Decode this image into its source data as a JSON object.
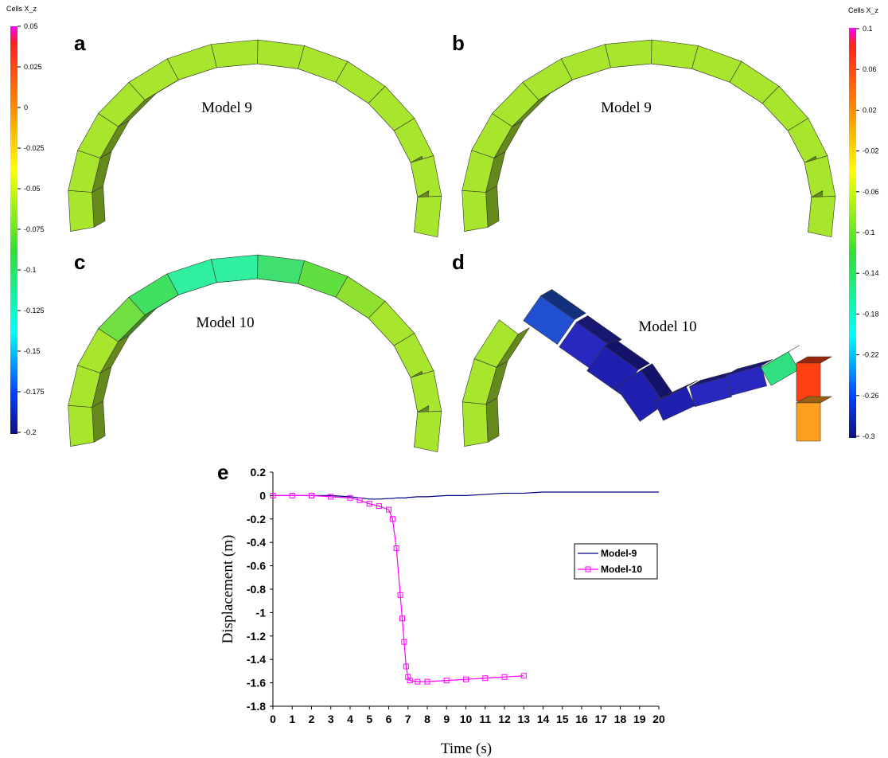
{
  "panels": [
    {
      "letter": "a",
      "model": "Model 9"
    },
    {
      "letter": "b",
      "model": "Model 9"
    },
    {
      "letter": "c",
      "model": "Model 10"
    },
    {
      "letter": "d",
      "model": "Model 10"
    }
  ],
  "colorbars": [
    {
      "title": "Cells X_z",
      "ticks": [
        0.05,
        0.025,
        0,
        -0.025,
        -0.05,
        -0.075,
        -0.1,
        -0.125,
        -0.15,
        -0.175,
        -0.2
      ]
    },
    {
      "title": "Cells X_z",
      "ticks": [
        0.1,
        0.06,
        0.02,
        -0.02,
        -0.06,
        -0.1,
        -0.14,
        -0.18,
        -0.22,
        -0.26,
        -0.3
      ]
    }
  ],
  "chart_data": {
    "type": "line",
    "panel_letter": "e",
    "xlabel": "Time (s)",
    "ylabel": "Displacement (m)",
    "x": [
      0,
      1,
      2,
      3,
      4,
      4.5,
      5,
      5.5,
      6,
      6.2,
      6.4,
      6.6,
      6.7,
      6.8,
      6.9,
      7,
      7.1,
      7.5,
      8,
      9,
      10,
      11,
      12,
      13,
      14,
      15,
      16,
      17,
      18,
      19,
      20
    ],
    "series": [
      {
        "name": "Model-9",
        "color": "#000080",
        "values": [
          0,
          0,
          0,
          0,
          -0.01,
          -0.02,
          -0.03,
          -0.03,
          -0.025,
          -0.025,
          -0.02,
          -0.02,
          -0.02,
          -0.02,
          -0.02,
          -0.015,
          -0.015,
          -0.01,
          -0.01,
          0,
          0,
          0.01,
          0.02,
          0.02,
          0.03,
          0.03,
          0.03,
          0.03,
          0.03,
          0.03,
          0.03
        ]
      },
      {
        "name": "Model-10",
        "color": "#ff00ff",
        "values": [
          0,
          0,
          0,
          -0.01,
          -0.02,
          -0.04,
          -0.07,
          -0.09,
          -0.12,
          -0.2,
          -0.45,
          -0.85,
          -1.05,
          -1.25,
          -1.46,
          -1.55,
          -1.58,
          -1.59,
          -1.59,
          -1.58,
          -1.57,
          -1.56,
          -1.55,
          -1.54,
          null,
          null,
          null,
          null,
          null,
          null,
          null
        ]
      }
    ],
    "xlim": [
      0,
      20
    ],
    "xticks": [
      0,
      1,
      2,
      3,
      4,
      5,
      6,
      7,
      8,
      9,
      10,
      11,
      12,
      13,
      14,
      15,
      16,
      17,
      18,
      19,
      20
    ],
    "ylim": [
      -1.8,
      0.2
    ],
    "yticks": [
      0.2,
      0,
      -0.2,
      -0.4,
      -0.6,
      -0.8,
      -1,
      -1.2,
      -1.4,
      -1.6,
      -1.8
    ],
    "legend": "right"
  }
}
